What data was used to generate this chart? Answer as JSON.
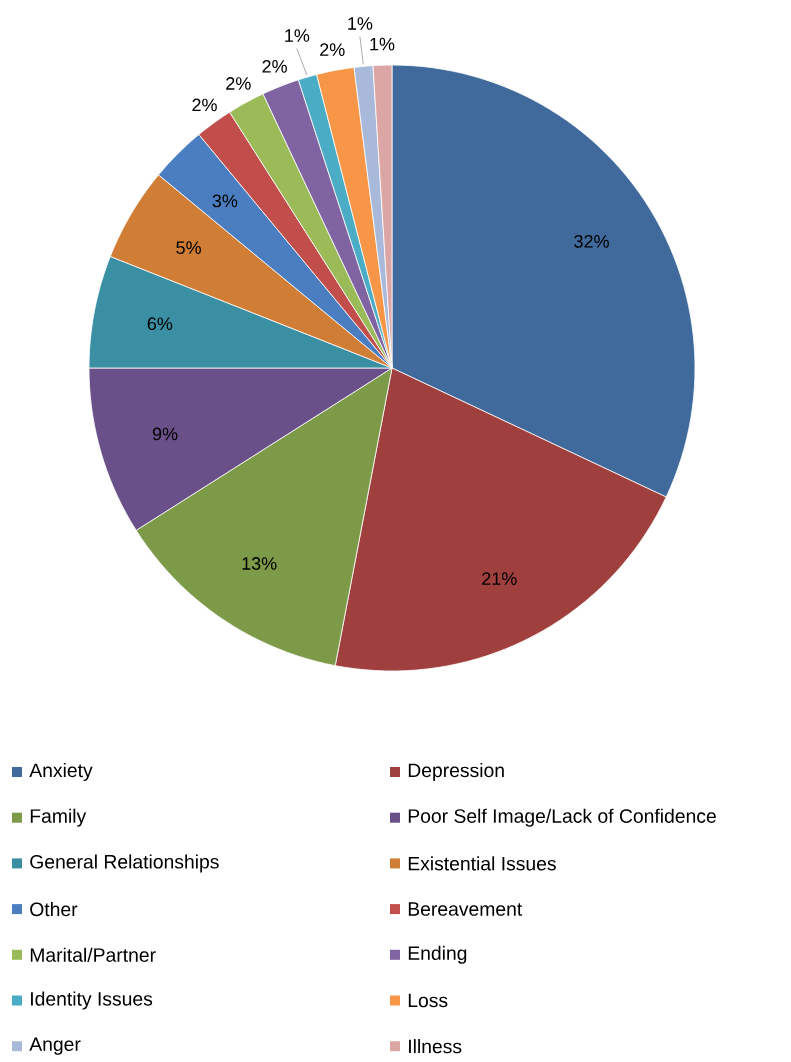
{
  "chart_data": {
    "type": "pie",
    "categories": [
      "Anxiety",
      "Depression",
      "Family",
      "Poor Self Image/Lack of Confidence",
      "General Relationships",
      "Existential Issues",
      "Other",
      "Bereavement",
      "Marital/Partner",
      "Ending",
      "Identity Issues",
      "Loss",
      "Anger",
      "Illness"
    ],
    "values": [
      32,
      21,
      13,
      9,
      6,
      5,
      3,
      2,
      2,
      2,
      1,
      2,
      1,
      1
    ],
    "value_labels": [
      "32%",
      "21%",
      "13%",
      "9%",
      "6%",
      "5%",
      "3%",
      "2%",
      "2%",
      "2%",
      "1%",
      "2%",
      "1%",
      "1%"
    ],
    "colors": [
      "#3F6A9B",
      "#A0403E",
      "#7D9A48",
      "#6A5088",
      "#3B8FA3",
      "#D07D35",
      "#4A7EC0",
      "#C24E4B",
      "#9BBB59",
      "#8064A2",
      "#4BACC6",
      "#F79646",
      "#A9B9DA",
      "#DCA6A5"
    ],
    "legend": "bottom"
  }
}
